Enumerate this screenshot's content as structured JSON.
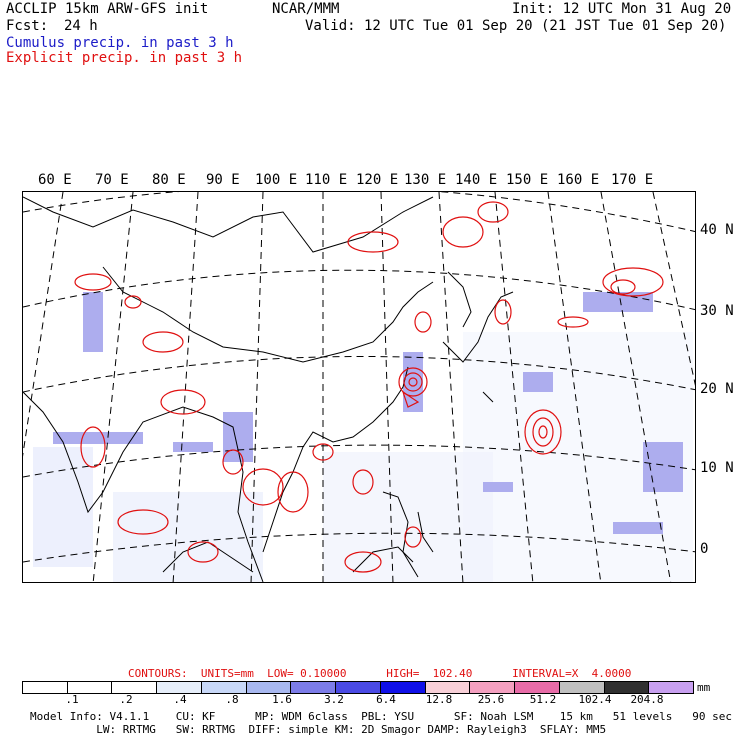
{
  "header": {
    "model": "ACCLIP 15km ARW-GFS init",
    "org": "NCAR/MMM",
    "init": "Init: 12 UTC Mon 31 Aug 20",
    "fcst_label": "Fcst:",
    "fcst_value": "24 h",
    "valid": "Valid: 12 UTC Tue 01 Sep 20 (21 JST Tue 01 Sep 20)",
    "cumulus": "Cumulus precip. in past 3 h",
    "explicit": "Explicit precip. in past 3 h"
  },
  "axes": {
    "lon_labels": [
      "60 E",
      "70 E",
      "80 E",
      "90 E",
      "100 E",
      "110 E",
      "120 E",
      "130 E",
      "140 E",
      "150 E",
      "160 E",
      "170 E"
    ],
    "lat_labels": [
      "40 N",
      "30 N",
      "20 N",
      "10 N",
      "0"
    ]
  },
  "legend": {
    "contours": "CONTOURS:  UNITS=mm  LOW= 0.10000      HIGH=  102.40      INTERVAL=X  4.0000",
    "ticks": [
      ".1",
      ".2",
      ".4",
      ".8",
      "1.6",
      "3.2",
      "6.4",
      "12.8",
      "25.6",
      "51.2",
      "102.4",
      "204.8"
    ],
    "unit": "mm",
    "colors": [
      "#ffffff",
      "#ffffff",
      "#ffffff",
      "#e6eefa",
      "#c8d8f8",
      "#a8b8f0",
      "#7c7ce8",
      "#4a4ae4",
      "#1010e8",
      "#f8d0d8",
      "#f4a0c0",
      "#e86ca8",
      "#c0c0c0",
      "#303030",
      "#c8a0f0"
    ]
  },
  "footer": {
    "line1": "Model Info: V4.1.1    CU: KF      MP: WDM 6class  PBL: YSU      SF: Noah LSM    15 km   51 levels   90 sec",
    "line2": "          LW: RRTMG   SW: RRTMG  DIFF: simple KM: 2D Smagor DAMP: Rayleigh3  SFLAY: MM5"
  }
}
